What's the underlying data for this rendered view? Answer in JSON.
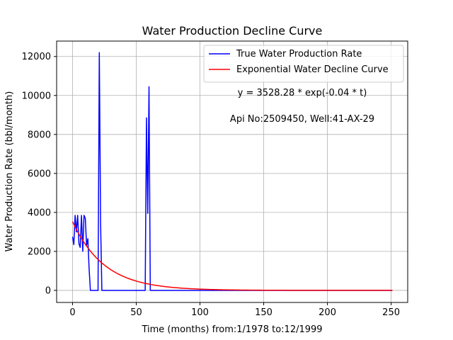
{
  "chart_data": {
    "type": "line",
    "title": "Water Production Decline Curve",
    "xlabel": "Time (months) from:1/1978 to:12/1999",
    "ylabel": "Water Production Rate (bbl/month)",
    "xlim": [
      -12.5,
      263
    ],
    "ylim": [
      -620,
      12790
    ],
    "xticks": [
      0,
      50,
      100,
      150,
      200,
      250
    ],
    "yticks": [
      0,
      2000,
      4000,
      6000,
      8000,
      10000,
      12000
    ],
    "grid": true,
    "legend_position": "top-right",
    "annotations": [
      "y = 3528.28 * exp(-0.04 * t)",
      "Api No:2509450, Well:41-AX-29"
    ],
    "series": [
      {
        "name": "True Water Production Rate",
        "color": "#0000ff",
        "points": [
          [
            0,
            2750
          ],
          [
            1,
            2350
          ],
          [
            2,
            3850
          ],
          [
            3,
            3000
          ],
          [
            4,
            3850
          ],
          [
            5,
            2400
          ],
          [
            6,
            2200
          ],
          [
            7,
            3850
          ],
          [
            8,
            2000
          ],
          [
            9,
            3850
          ],
          [
            10,
            3700
          ],
          [
            11,
            2300
          ],
          [
            12,
            2650
          ],
          [
            13,
            1100
          ],
          [
            14,
            0
          ],
          [
            20,
            0
          ],
          [
            21,
            12200
          ],
          [
            22,
            3500
          ],
          [
            23,
            0
          ],
          [
            57,
            0
          ],
          [
            58,
            8850
          ],
          [
            59,
            3950
          ],
          [
            60,
            10450
          ],
          [
            61,
            0
          ],
          [
            251,
            0
          ]
        ]
      },
      {
        "name": "Exponential Water Decline Curve",
        "color": "#ff0000",
        "equation": {
          "a": 3528.28,
          "b": 0.04
        },
        "x_range": [
          0,
          251
        ]
      }
    ]
  }
}
